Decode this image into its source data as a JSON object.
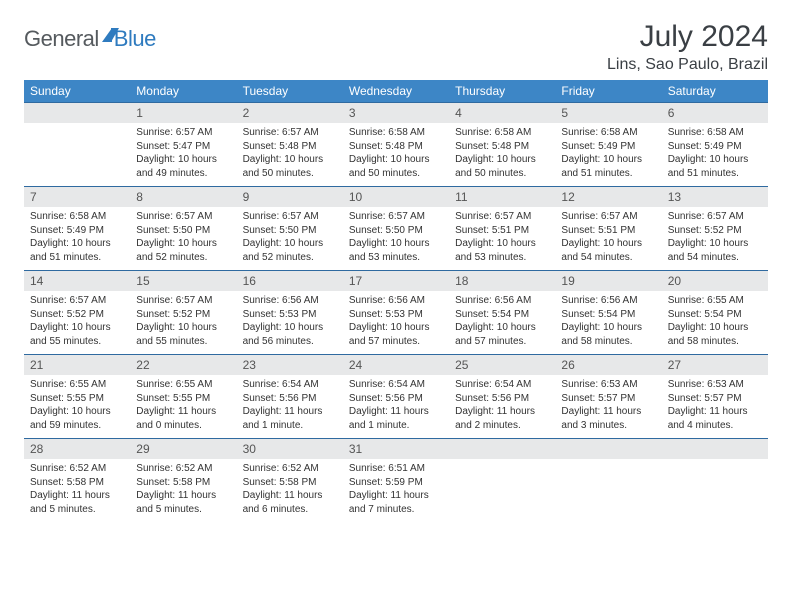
{
  "logo": {
    "part1": "General",
    "part2": "Blue"
  },
  "title": "July 2024",
  "location": "Lins, Sao Paulo, Brazil",
  "colors": {
    "header_bg": "#3d86c6",
    "header_text": "#ffffff",
    "daynum_bg": "#e7e8e9",
    "week_border": "#2f6aa0",
    "body_text": "#333333",
    "logo_gray": "#555a5e",
    "logo_blue": "#2f7bbf"
  },
  "day_headers": [
    "Sunday",
    "Monday",
    "Tuesday",
    "Wednesday",
    "Thursday",
    "Friday",
    "Saturday"
  ],
  "weeks": [
    [
      {
        "n": "",
        "sunrise": "",
        "sunset": "",
        "daylight1": "",
        "daylight2": ""
      },
      {
        "n": "1",
        "sunrise": "Sunrise: 6:57 AM",
        "sunset": "Sunset: 5:47 PM",
        "daylight1": "Daylight: 10 hours",
        "daylight2": "and 49 minutes."
      },
      {
        "n": "2",
        "sunrise": "Sunrise: 6:57 AM",
        "sunset": "Sunset: 5:48 PM",
        "daylight1": "Daylight: 10 hours",
        "daylight2": "and 50 minutes."
      },
      {
        "n": "3",
        "sunrise": "Sunrise: 6:58 AM",
        "sunset": "Sunset: 5:48 PM",
        "daylight1": "Daylight: 10 hours",
        "daylight2": "and 50 minutes."
      },
      {
        "n": "4",
        "sunrise": "Sunrise: 6:58 AM",
        "sunset": "Sunset: 5:48 PM",
        "daylight1": "Daylight: 10 hours",
        "daylight2": "and 50 minutes."
      },
      {
        "n": "5",
        "sunrise": "Sunrise: 6:58 AM",
        "sunset": "Sunset: 5:49 PM",
        "daylight1": "Daylight: 10 hours",
        "daylight2": "and 51 minutes."
      },
      {
        "n": "6",
        "sunrise": "Sunrise: 6:58 AM",
        "sunset": "Sunset: 5:49 PM",
        "daylight1": "Daylight: 10 hours",
        "daylight2": "and 51 minutes."
      }
    ],
    [
      {
        "n": "7",
        "sunrise": "Sunrise: 6:58 AM",
        "sunset": "Sunset: 5:49 PM",
        "daylight1": "Daylight: 10 hours",
        "daylight2": "and 51 minutes."
      },
      {
        "n": "8",
        "sunrise": "Sunrise: 6:57 AM",
        "sunset": "Sunset: 5:50 PM",
        "daylight1": "Daylight: 10 hours",
        "daylight2": "and 52 minutes."
      },
      {
        "n": "9",
        "sunrise": "Sunrise: 6:57 AM",
        "sunset": "Sunset: 5:50 PM",
        "daylight1": "Daylight: 10 hours",
        "daylight2": "and 52 minutes."
      },
      {
        "n": "10",
        "sunrise": "Sunrise: 6:57 AM",
        "sunset": "Sunset: 5:50 PM",
        "daylight1": "Daylight: 10 hours",
        "daylight2": "and 53 minutes."
      },
      {
        "n": "11",
        "sunrise": "Sunrise: 6:57 AM",
        "sunset": "Sunset: 5:51 PM",
        "daylight1": "Daylight: 10 hours",
        "daylight2": "and 53 minutes."
      },
      {
        "n": "12",
        "sunrise": "Sunrise: 6:57 AM",
        "sunset": "Sunset: 5:51 PM",
        "daylight1": "Daylight: 10 hours",
        "daylight2": "and 54 minutes."
      },
      {
        "n": "13",
        "sunrise": "Sunrise: 6:57 AM",
        "sunset": "Sunset: 5:52 PM",
        "daylight1": "Daylight: 10 hours",
        "daylight2": "and 54 minutes."
      }
    ],
    [
      {
        "n": "14",
        "sunrise": "Sunrise: 6:57 AM",
        "sunset": "Sunset: 5:52 PM",
        "daylight1": "Daylight: 10 hours",
        "daylight2": "and 55 minutes."
      },
      {
        "n": "15",
        "sunrise": "Sunrise: 6:57 AM",
        "sunset": "Sunset: 5:52 PM",
        "daylight1": "Daylight: 10 hours",
        "daylight2": "and 55 minutes."
      },
      {
        "n": "16",
        "sunrise": "Sunrise: 6:56 AM",
        "sunset": "Sunset: 5:53 PM",
        "daylight1": "Daylight: 10 hours",
        "daylight2": "and 56 minutes."
      },
      {
        "n": "17",
        "sunrise": "Sunrise: 6:56 AM",
        "sunset": "Sunset: 5:53 PM",
        "daylight1": "Daylight: 10 hours",
        "daylight2": "and 57 minutes."
      },
      {
        "n": "18",
        "sunrise": "Sunrise: 6:56 AM",
        "sunset": "Sunset: 5:54 PM",
        "daylight1": "Daylight: 10 hours",
        "daylight2": "and 57 minutes."
      },
      {
        "n": "19",
        "sunrise": "Sunrise: 6:56 AM",
        "sunset": "Sunset: 5:54 PM",
        "daylight1": "Daylight: 10 hours",
        "daylight2": "and 58 minutes."
      },
      {
        "n": "20",
        "sunrise": "Sunrise: 6:55 AM",
        "sunset": "Sunset: 5:54 PM",
        "daylight1": "Daylight: 10 hours",
        "daylight2": "and 58 minutes."
      }
    ],
    [
      {
        "n": "21",
        "sunrise": "Sunrise: 6:55 AM",
        "sunset": "Sunset: 5:55 PM",
        "daylight1": "Daylight: 10 hours",
        "daylight2": "and 59 minutes."
      },
      {
        "n": "22",
        "sunrise": "Sunrise: 6:55 AM",
        "sunset": "Sunset: 5:55 PM",
        "daylight1": "Daylight: 11 hours",
        "daylight2": "and 0 minutes."
      },
      {
        "n": "23",
        "sunrise": "Sunrise: 6:54 AM",
        "sunset": "Sunset: 5:56 PM",
        "daylight1": "Daylight: 11 hours",
        "daylight2": "and 1 minute."
      },
      {
        "n": "24",
        "sunrise": "Sunrise: 6:54 AM",
        "sunset": "Sunset: 5:56 PM",
        "daylight1": "Daylight: 11 hours",
        "daylight2": "and 1 minute."
      },
      {
        "n": "25",
        "sunrise": "Sunrise: 6:54 AM",
        "sunset": "Sunset: 5:56 PM",
        "daylight1": "Daylight: 11 hours",
        "daylight2": "and 2 minutes."
      },
      {
        "n": "26",
        "sunrise": "Sunrise: 6:53 AM",
        "sunset": "Sunset: 5:57 PM",
        "daylight1": "Daylight: 11 hours",
        "daylight2": "and 3 minutes."
      },
      {
        "n": "27",
        "sunrise": "Sunrise: 6:53 AM",
        "sunset": "Sunset: 5:57 PM",
        "daylight1": "Daylight: 11 hours",
        "daylight2": "and 4 minutes."
      }
    ],
    [
      {
        "n": "28",
        "sunrise": "Sunrise: 6:52 AM",
        "sunset": "Sunset: 5:58 PM",
        "daylight1": "Daylight: 11 hours",
        "daylight2": "and 5 minutes."
      },
      {
        "n": "29",
        "sunrise": "Sunrise: 6:52 AM",
        "sunset": "Sunset: 5:58 PM",
        "daylight1": "Daylight: 11 hours",
        "daylight2": "and 5 minutes."
      },
      {
        "n": "30",
        "sunrise": "Sunrise: 6:52 AM",
        "sunset": "Sunset: 5:58 PM",
        "daylight1": "Daylight: 11 hours",
        "daylight2": "and 6 minutes."
      },
      {
        "n": "31",
        "sunrise": "Sunrise: 6:51 AM",
        "sunset": "Sunset: 5:59 PM",
        "daylight1": "Daylight: 11 hours",
        "daylight2": "and 7 minutes."
      },
      {
        "n": "",
        "sunrise": "",
        "sunset": "",
        "daylight1": "",
        "daylight2": ""
      },
      {
        "n": "",
        "sunrise": "",
        "sunset": "",
        "daylight1": "",
        "daylight2": ""
      },
      {
        "n": "",
        "sunrise": "",
        "sunset": "",
        "daylight1": "",
        "daylight2": ""
      }
    ]
  ]
}
